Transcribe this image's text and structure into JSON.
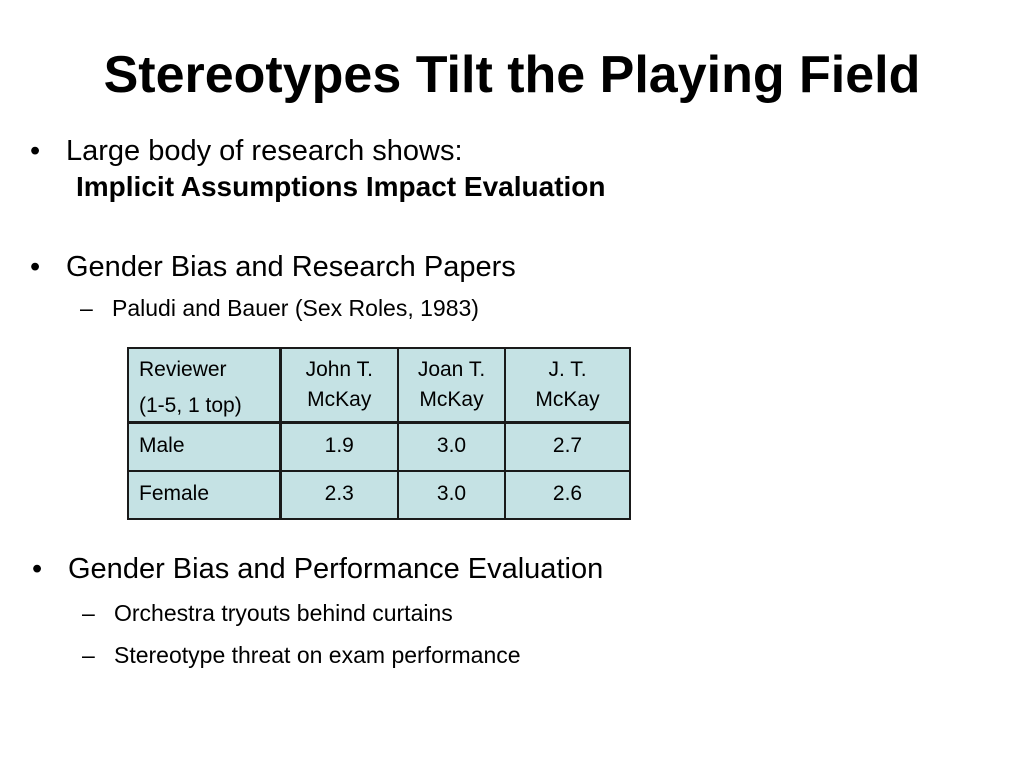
{
  "slide": {
    "title": "Stereotypes Tilt the Playing Field",
    "bullet_symbol": "•",
    "dash_symbol": "–",
    "bullets": [
      {
        "text": "Large body of research shows:",
        "emphasis": "Implicit Assumptions Impact Evaluation"
      },
      {
        "text": "Gender Bias and Research Papers",
        "subs": [
          "Paludi and Bauer (Sex Roles, 1983)"
        ]
      },
      {
        "text": "Gender Bias and Performance Evaluation",
        "subs": [
          "Orchestra tryouts behind curtains",
          "Stereotype threat on exam performance"
        ]
      }
    ],
    "table": {
      "header": {
        "reviewer_line1": "Reviewer",
        "reviewer_line2": "(1-5, 1 top)",
        "columns": [
          {
            "line1": "John T.",
            "line2": "McKay"
          },
          {
            "line1": "Joan T.",
            "line2": "McKay"
          },
          {
            "line1": "J. T.",
            "line2": "McKay"
          }
        ]
      },
      "rows": [
        {
          "label": "Male",
          "values": [
            "1.9",
            "3.0",
            "2.7"
          ]
        },
        {
          "label": "Female",
          "values": [
            "2.3",
            "3.0",
            "2.6"
          ]
        }
      ],
      "cell_color": "#c5e2e4"
    }
  }
}
